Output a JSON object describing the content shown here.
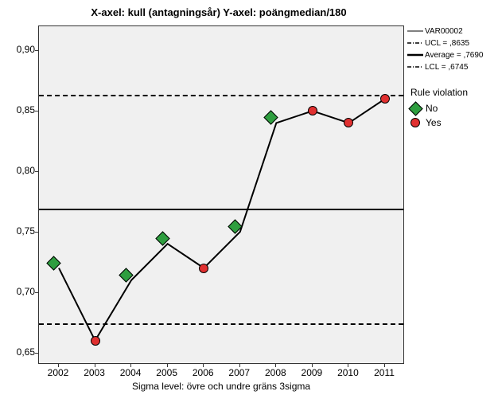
{
  "chart": {
    "type": "control-chart",
    "title": "X-axel: kull (antagningsår) Y-axel: poängmedian/180",
    "title_fontsize": 13,
    "background_color": "#ffffff",
    "plot_background_color": "#f0f0f0",
    "border_color": "#333333",
    "x": {
      "categories": [
        "2002",
        "2003",
        "2004",
        "2005",
        "2006",
        "2007",
        "2008",
        "2009",
        "2010",
        "2011"
      ],
      "caption": "Sigma level:        övre och undre gräns   3sigma",
      "label_fontsize": 12
    },
    "y": {
      "min": 0.64,
      "max": 0.92,
      "ticks": [
        0.65,
        0.7,
        0.75,
        0.8,
        0.85,
        0.9
      ],
      "tick_labels": [
        "0,65",
        "0,70",
        "0,75",
        "0,80",
        "0,85",
        "0,90"
      ],
      "label_fontsize": 12
    },
    "series": {
      "name": "VAR00002",
      "values": [
        0.72,
        0.66,
        0.71,
        0.74,
        0.72,
        0.75,
        0.84,
        0.85,
        0.84,
        0.86
      ],
      "violations": [
        "No",
        "Yes",
        "No",
        "No",
        "Yes",
        "No",
        "No",
        "Yes",
        "Yes",
        "Yes"
      ],
      "line_color": "#000000",
      "line_width": 2
    },
    "reference_lines": {
      "ucl": {
        "value": 0.8635,
        "label": "UCL = ,8635",
        "style": "dashed"
      },
      "average": {
        "value": 0.769,
        "label": "Average = ,7690",
        "style": "solid"
      },
      "lcl": {
        "value": 0.6745,
        "label": "LCL = ,6745",
        "style": "dashed"
      }
    },
    "markers": {
      "no_violation": {
        "shape": "diamond",
        "fill": "#2e9e3f",
        "stroke": "#000000",
        "size": 13
      },
      "yes_violation": {
        "shape": "circle",
        "fill": "#e03030",
        "stroke": "#000000",
        "size": 12
      }
    },
    "legend": {
      "line_items": [
        {
          "style": "solid",
          "thin": true,
          "label": "VAR00002"
        },
        {
          "style": "dash_dot",
          "label": "UCL = ,8635"
        },
        {
          "style": "solid",
          "thick": true,
          "label": "Average = ,7690"
        },
        {
          "style": "dash_dot",
          "label": "LCL = ,6745"
        }
      ],
      "rule_title": "Rule violation",
      "marker_items": [
        {
          "key": "No",
          "marker": "no_violation"
        },
        {
          "key": "Yes",
          "marker": "yes_violation"
        }
      ]
    }
  }
}
